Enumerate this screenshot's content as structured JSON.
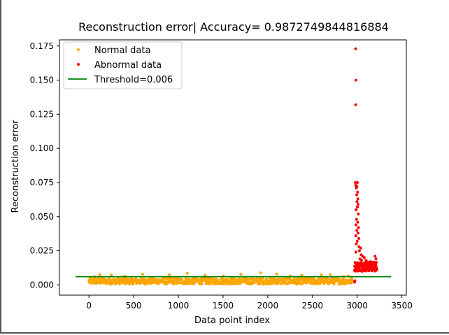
{
  "chart_data": {
    "type": "scatter",
    "title": "Reconstruction error| Accuracy= 0.9872749844816884",
    "xlabel": "Data point index",
    "ylabel": "Reconstruction error",
    "xlim": [
      -330,
      3550
    ],
    "ylim": [
      -0.0075,
      0.1795
    ],
    "xticks": [
      0,
      500,
      1000,
      1500,
      2000,
      2500,
      3000,
      3500
    ],
    "xtick_labels": [
      "0",
      "500",
      "1000",
      "1500",
      "2000",
      "2500",
      "3000",
      "3500"
    ],
    "yticks": [
      0.0,
      0.025,
      0.05,
      0.075,
      0.1,
      0.125,
      0.15,
      0.175
    ],
    "ytick_labels": [
      "0.000",
      "0.025",
      "0.050",
      "0.075",
      "0.100",
      "0.125",
      "0.150",
      "0.175"
    ],
    "grid": false,
    "legend_position": "upper-left",
    "legend": [
      {
        "label": "Normal data",
        "color": "#ffa500",
        "marker": "dot"
      },
      {
        "label": "Abnormal data",
        "color": "#ff0000",
        "marker": "dot"
      },
      {
        "label": "Threshold=0.006",
        "color": "#008000",
        "marker": "line"
      }
    ],
    "series": [
      {
        "name": "Normal data",
        "color": "#ffa500",
        "x_range": [
          0,
          2950
        ],
        "points": [
          [
            120,
            0.0075
          ],
          [
            250,
            0.0072
          ],
          [
            600,
            0.0078
          ],
          [
            900,
            0.0074
          ],
          [
            1100,
            0.0085
          ],
          [
            1300,
            0.007
          ],
          [
            1700,
            0.0078
          ],
          [
            1920,
            0.0088
          ],
          [
            2100,
            0.008
          ],
          [
            2380,
            0.0072
          ],
          [
            2600,
            0.0075
          ],
          [
            2700,
            0.0077
          ],
          [
            2900,
            0.0066
          ],
          [
            60,
            0.0061
          ],
          [
            400,
            0.0064
          ],
          [
            1500,
            0.0063
          ],
          [
            2250,
            0.0066
          ],
          [
            2850,
            0.0062
          ]
        ]
      },
      {
        "name": "Abnormal data",
        "color": "#ff0000",
        "x_range": [
          2960,
          3220
        ],
        "points": [
          [
            2982,
            0.173
          ],
          [
            2985,
            0.15
          ],
          [
            2983,
            0.132
          ],
          [
            2980,
            0.075
          ],
          [
            2984,
            0.073
          ],
          [
            2990,
            0.071
          ],
          [
            3003,
            0.075
          ],
          [
            2997,
            0.072
          ],
          [
            3005,
            0.068
          ],
          [
            2995,
            0.066
          ],
          [
            3008,
            0.063
          ],
          [
            2998,
            0.061
          ],
          [
            3010,
            0.059
          ],
          [
            3002,
            0.057
          ],
          [
            2988,
            0.055
          ],
          [
            3012,
            0.052
          ],
          [
            2993,
            0.048
          ],
          [
            3006,
            0.046
          ],
          [
            2987,
            0.044
          ],
          [
            3015,
            0.042
          ],
          [
            2996,
            0.04
          ],
          [
            3009,
            0.038
          ],
          [
            2985,
            0.036
          ],
          [
            3018,
            0.034
          ],
          [
            3001,
            0.032
          ],
          [
            2990,
            0.03
          ],
          [
            3020,
            0.028
          ],
          [
            3040,
            0.027
          ],
          [
            3025,
            0.025
          ],
          [
            2986,
            0.024
          ],
          [
            3045,
            0.022
          ],
          [
            3060,
            0.021
          ],
          [
            3080,
            0.02
          ],
          [
            3030,
            0.019
          ],
          [
            3050,
            0.018
          ],
          [
            3100,
            0.018
          ],
          [
            3150,
            0.017
          ],
          [
            3200,
            0.021
          ],
          [
            3210,
            0.019
          ],
          [
            3120,
            0.016
          ],
          [
            3170,
            0.016
          ],
          [
            3090,
            0.015
          ],
          [
            3190,
            0.015
          ],
          [
            2970,
            0.002
          ],
          [
            2975,
            0.003
          ]
        ]
      }
    ],
    "threshold": {
      "value": 0.006,
      "x_start": -150,
      "x_end": 3380,
      "color": "#008000"
    }
  }
}
